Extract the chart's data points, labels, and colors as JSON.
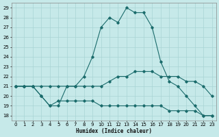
{
  "xlabel": "Humidex (Indice chaleur)",
  "xlim": [
    -0.5,
    23.5
  ],
  "ylim": [
    17.5,
    29.5
  ],
  "xticks": [
    0,
    1,
    2,
    3,
    4,
    5,
    6,
    7,
    8,
    9,
    10,
    11,
    12,
    13,
    14,
    15,
    16,
    17,
    18,
    19,
    20,
    21,
    22,
    23
  ],
  "yticks": [
    18,
    19,
    20,
    21,
    22,
    23,
    24,
    25,
    26,
    27,
    28,
    29
  ],
  "bg_color": "#c6e9e9",
  "line_color": "#1a6b6b",
  "grid_color": "#a8d4d4",
  "series": [
    {
      "x": [
        0,
        1,
        2,
        3,
        4,
        5,
        6,
        7,
        8,
        9,
        10,
        11,
        12,
        13,
        14,
        15,
        16,
        17,
        18,
        19,
        20,
        21,
        22,
        23
      ],
      "y": [
        21,
        21,
        21,
        20,
        19,
        19,
        21,
        21,
        22,
        24,
        27,
        28,
        27.5,
        29,
        28.5,
        28.5,
        27,
        23.5,
        21.5,
        21,
        20,
        19,
        18,
        18
      ]
    },
    {
      "x": [
        0,
        1,
        2,
        3,
        4,
        5,
        6,
        7,
        8,
        9,
        10,
        11,
        12,
        13,
        14,
        15,
        16,
        17,
        18,
        19,
        20,
        21,
        22,
        23
      ],
      "y": [
        21,
        21,
        21,
        21,
        21,
        21,
        21,
        21,
        21,
        21,
        21,
        21.5,
        22,
        22,
        22.5,
        22.5,
        22.5,
        22,
        22,
        22,
        21.5,
        21.5,
        21,
        20
      ]
    },
    {
      "x": [
        0,
        1,
        2,
        3,
        4,
        5,
        6,
        7,
        8,
        9,
        10,
        11,
        12,
        13,
        14,
        15,
        16,
        17,
        18,
        19,
        20,
        21,
        22,
        23
      ],
      "y": [
        21,
        21,
        21,
        20,
        19,
        19.5,
        19.5,
        19.5,
        19.5,
        19.5,
        19,
        19,
        19,
        19,
        19,
        19,
        19,
        19,
        18.5,
        18.5,
        18.5,
        18.5,
        18,
        18
      ]
    }
  ]
}
